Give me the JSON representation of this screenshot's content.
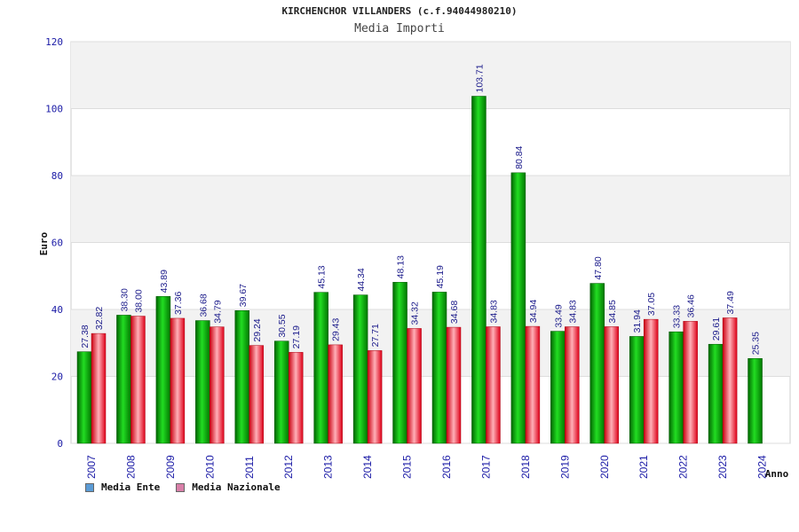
{
  "chart_data": {
    "type": "bar",
    "title": "KIRCHENCHOR VILLANDERS (c.f.94044980210)",
    "subtitle": "Media Importi",
    "ylabel": "Euro",
    "xlabel": "Anno",
    "ylim": [
      0,
      120
    ],
    "yticks": [
      0,
      20,
      40,
      60,
      80,
      100,
      120
    ],
    "grid": true,
    "legend_position": "bottom-left",
    "categories": [
      "2007",
      "2008",
      "2009",
      "2010",
      "2011",
      "2012",
      "2013",
      "2014",
      "2015",
      "2016",
      "2017",
      "2018",
      "2019",
      "2020",
      "2021",
      "2022",
      "2023",
      "2024"
    ],
    "series": [
      {
        "name": "Media Ente",
        "color": "#00a000",
        "legend_color": "#5b9bd5",
        "values": [
          27.38,
          38.3,
          43.89,
          36.68,
          39.67,
          30.55,
          45.13,
          44.34,
          48.13,
          45.19,
          103.71,
          80.84,
          33.49,
          47.8,
          31.94,
          33.33,
          29.61,
          25.35
        ],
        "labels": [
          "27.38",
          "38.30",
          "43.89",
          "36.68",
          "39.67",
          "30.55",
          "45.13",
          "44.34",
          "48.13",
          "45.19",
          "103.71",
          "80.84",
          "33.49",
          "47.80",
          "31.94",
          "33.33",
          "29.61",
          "25.35"
        ]
      },
      {
        "name": "Media Nazionale",
        "color": "#e01020",
        "legend_color": "#d87fa8",
        "values": [
          32.82,
          38.0,
          37.36,
          34.79,
          29.24,
          27.19,
          29.43,
          27.71,
          34.32,
          34.68,
          34.83,
          34.94,
          34.83,
          34.85,
          37.05,
          36.46,
          37.49,
          null
        ],
        "labels": [
          "32.82",
          "38.00",
          "37.36",
          "34.79",
          "29.24",
          "27.19",
          "29.43",
          "27.71",
          "34.32",
          "34.68",
          "34.83",
          "34.94",
          "34.83",
          "34.85",
          "37.05",
          "36.46",
          "37.49",
          ""
        ]
      }
    ]
  }
}
